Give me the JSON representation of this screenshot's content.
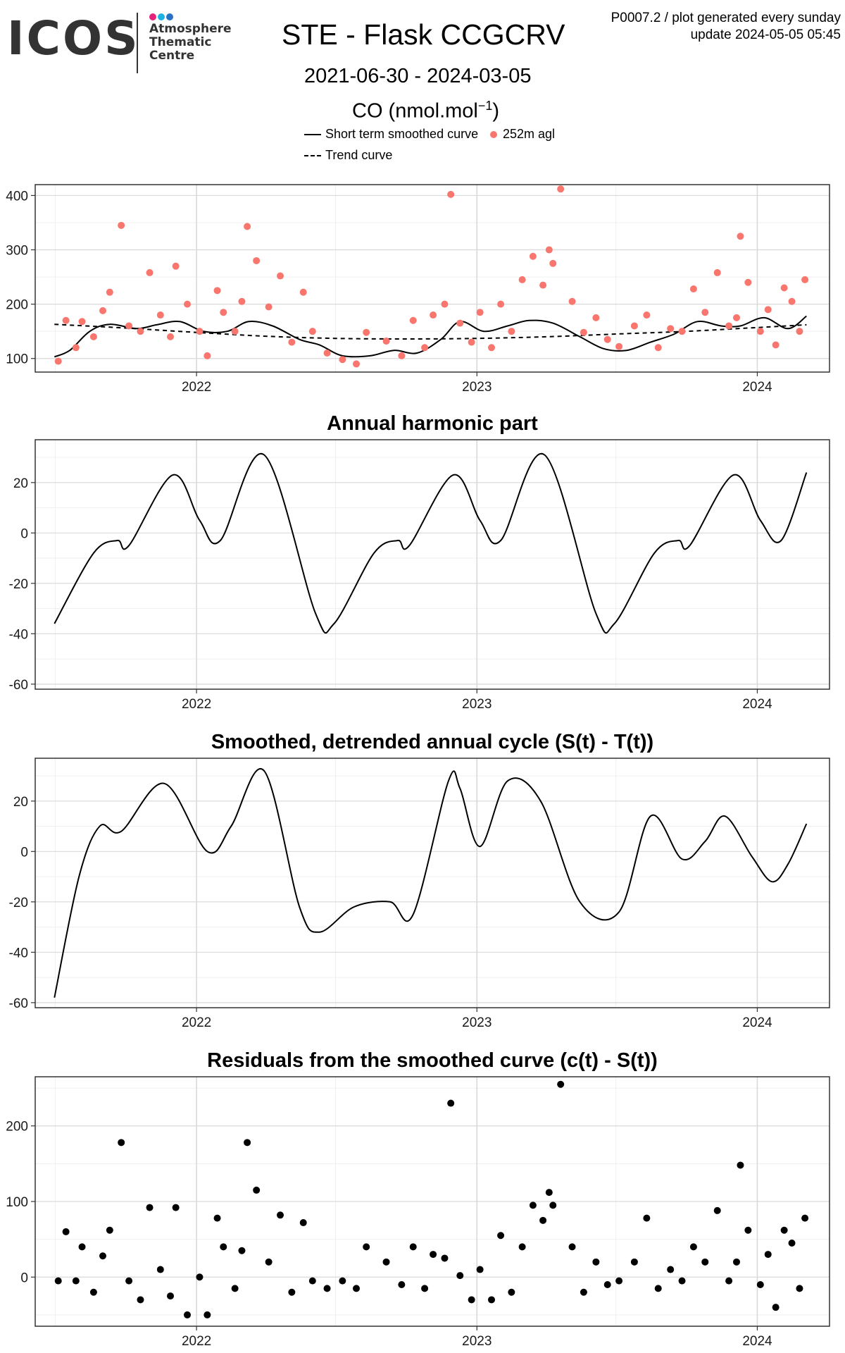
{
  "header": {
    "logo_text": "ICOS",
    "logo_sub": [
      "Atmosphere",
      "Thematic",
      "Centre"
    ],
    "logo_dot_colors": [
      "#e3237b",
      "#1eb1e6",
      "#2572c6"
    ],
    "title": "STE - Flask CCGCRV",
    "date_range": "2021-06-30 - 2024-03-05",
    "unit_main": "CO (nmol.mol",
    "unit_sup": "−1",
    "unit_close": ")",
    "corner_line1": "P0007.2 / plot generated every sunday",
    "corner_line2": "update  2024-05-05 05:45"
  },
  "legend": {
    "smooth_label": "Short term smoothed curve",
    "points_label": "252m agl",
    "trend_label": "Trend curve"
  },
  "colors": {
    "points": "#f8766d",
    "line": "#000000",
    "grid_major": "#d9d9d9",
    "grid_minor": "#efefef",
    "frame": "#333333"
  },
  "chart_data": [
    {
      "type": "scatter",
      "title": "",
      "xlabel": "",
      "ylabel": "",
      "xlim": [
        "2021-06-05",
        "2024-04-04"
      ],
      "ylim": [
        75,
        420
      ],
      "x_ticks": [
        "2022",
        "2023",
        "2024"
      ],
      "y_ticks": [
        "100",
        "200",
        "300",
        "400"
      ],
      "legend_position": "top",
      "grid": true,
      "series": [
        {
          "name": "Short term smoothed curve",
          "kind": "line",
          "x": [
            "2021-06-30",
            "2021-07-20",
            "2021-08-15",
            "2021-09-10",
            "2021-10-15",
            "2021-11-10",
            "2021-12-10",
            "2022-01-10",
            "2022-02-10",
            "2022-03-10",
            "2022-04-10",
            "2022-05-15",
            "2022-06-10",
            "2022-07-10",
            "2022-08-15",
            "2022-09-15",
            "2022-10-15",
            "2022-11-15",
            "2022-12-10",
            "2023-01-10",
            "2023-02-10",
            "2023-03-10",
            "2023-04-10",
            "2023-05-15",
            "2023-06-15",
            "2023-07-15",
            "2023-08-15",
            "2023-09-15",
            "2023-10-15",
            "2023-11-15",
            "2023-12-10",
            "2024-01-10",
            "2024-02-10",
            "2024-03-05"
          ],
          "y": [
            103,
            115,
            150,
            163,
            155,
            162,
            168,
            150,
            150,
            168,
            160,
            135,
            125,
            105,
            105,
            115,
            110,
            135,
            168,
            150,
            160,
            170,
            165,
            140,
            118,
            115,
            130,
            145,
            168,
            160,
            160,
            175,
            155,
            178
          ]
        },
        {
          "name": "Trend curve",
          "kind": "dashed-line",
          "x": [
            "2021-06-30",
            "2021-10-01",
            "2022-01-01",
            "2022-04-01",
            "2022-07-01",
            "2022-10-01",
            "2023-01-01",
            "2023-04-01",
            "2023-07-01",
            "2023-10-01",
            "2024-01-01",
            "2024-03-05"
          ],
          "y": [
            163,
            156,
            148,
            141,
            137,
            136,
            137,
            140,
            145,
            150,
            157,
            162
          ]
        },
        {
          "name": "252m agl",
          "kind": "points",
          "x": [
            "2021-07-05",
            "2021-07-15",
            "2021-07-28",
            "2021-08-05",
            "2021-08-20",
            "2021-09-01",
            "2021-09-10",
            "2021-09-25",
            "2021-10-05",
            "2021-10-20",
            "2021-11-01",
            "2021-11-15",
            "2021-11-28",
            "2021-12-05",
            "2021-12-20",
            "2022-01-05",
            "2022-01-15",
            "2022-01-28",
            "2022-02-05",
            "2022-02-20",
            "2022-03-01",
            "2022-03-08",
            "2022-03-20",
            "2022-04-05",
            "2022-04-20",
            "2022-05-05",
            "2022-05-20",
            "2022-06-01",
            "2022-06-20",
            "2022-07-10",
            "2022-07-28",
            "2022-08-10",
            "2022-09-05",
            "2022-09-25",
            "2022-10-10",
            "2022-10-25",
            "2022-11-05",
            "2022-11-20",
            "2022-11-28",
            "2022-12-10",
            "2022-12-25",
            "2023-01-05",
            "2023-01-20",
            "2023-02-01",
            "2023-02-15",
            "2023-03-01",
            "2023-03-15",
            "2023-03-28",
            "2023-04-05",
            "2023-04-10",
            "2023-04-20",
            "2023-05-05",
            "2023-05-20",
            "2023-06-05",
            "2023-06-20",
            "2023-07-05",
            "2023-07-25",
            "2023-08-10",
            "2023-08-25",
            "2023-09-10",
            "2023-09-25",
            "2023-10-10",
            "2023-10-25",
            "2023-11-10",
            "2023-11-25",
            "2023-12-05",
            "2023-12-10",
            "2023-12-20",
            "2024-01-05",
            "2024-01-15",
            "2024-01-25",
            "2024-02-05",
            "2024-02-15",
            "2024-02-25",
            "2024-03-03"
          ],
          "y": [
            95,
            170,
            120,
            168,
            140,
            188,
            222,
            345,
            160,
            150,
            258,
            180,
            140,
            270,
            200,
            150,
            105,
            225,
            185,
            150,
            205,
            343,
            280,
            195,
            252,
            130,
            222,
            150,
            110,
            98,
            90,
            148,
            132,
            105,
            170,
            120,
            180,
            200,
            402,
            165,
            130,
            185,
            120,
            200,
            150,
            245,
            288,
            235,
            300,
            275,
            412,
            205,
            148,
            175,
            135,
            122,
            160,
            180,
            120,
            155,
            150,
            228,
            185,
            258,
            160,
            175,
            325,
            240,
            150,
            190,
            125,
            230,
            205,
            150,
            245
          ]
        }
      ]
    },
    {
      "type": "line",
      "title": "Annual harmonic part",
      "xlabel": "",
      "ylabel": "",
      "xlim": [
        "2021-06-05",
        "2024-04-04"
      ],
      "ylim": [
        -62,
        37
      ],
      "x_ticks": [
        "2022",
        "2023",
        "2024"
      ],
      "y_ticks": [
        "-60",
        "-40",
        "-20",
        "0",
        "20"
      ],
      "grid": true,
      "series": [
        {
          "name": "",
          "x": [
            "2021-06-30",
            "2021-08-20",
            "2021-09-20",
            "2021-10-05",
            "2021-12-01",
            "2022-01-05",
            "2022-02-01",
            "2022-03-30",
            "2022-06-05",
            "2022-06-29",
            "2022-08-20",
            "2022-09-20",
            "2022-10-05",
            "2022-12-01",
            "2023-01-05",
            "2023-02-01",
            "2023-03-30",
            "2023-06-05",
            "2023-06-29",
            "2023-08-20",
            "2023-09-20",
            "2023-10-05",
            "2023-12-01",
            "2024-01-05",
            "2024-02-01",
            "2024-03-05"
          ],
          "y": [
            -36,
            -8,
            -3,
            -5,
            23,
            5,
            -3,
            31,
            -32,
            -36,
            -8,
            -3,
            -5,
            23,
            5,
            -3,
            31,
            -32,
            -36,
            -8,
            -3,
            -5,
            23,
            5,
            -3,
            24
          ]
        }
      ]
    },
    {
      "type": "line",
      "title": "Smoothed, detrended annual cycle (S(t) - T(t))",
      "xlabel": "",
      "ylabel": "",
      "xlim": [
        "2021-06-05",
        "2024-04-04"
      ],
      "ylim": [
        -62,
        37
      ],
      "x_ticks": [
        "2022",
        "2023",
        "2024"
      ],
      "y_ticks": [
        "-60",
        "-40",
        "-20",
        "0",
        "20"
      ],
      "grid": true,
      "series": [
        {
          "name": "",
          "x": [
            "2021-06-30",
            "2021-08-01",
            "2021-08-28",
            "2021-09-25",
            "2021-11-20",
            "2022-01-15",
            "2022-02-15",
            "2022-03-30",
            "2022-05-15",
            "2022-06-10",
            "2022-07-25",
            "2022-09-10",
            "2022-10-10",
            "2022-11-25",
            "2022-12-10",
            "2023-01-05",
            "2023-02-10",
            "2023-03-25",
            "2023-05-15",
            "2023-07-05",
            "2023-08-15",
            "2023-09-25",
            "2023-10-25",
            "2023-11-20",
            "2023-12-25",
            "2024-01-20",
            "2024-02-10",
            "2024-03-05"
          ],
          "y": [
            -58,
            -10,
            10,
            8,
            27,
            0,
            10,
            32,
            -22,
            -32,
            -22,
            -20,
            -25,
            28,
            25,
            2,
            28,
            20,
            -20,
            -24,
            14,
            -3,
            4,
            14,
            -2,
            -12,
            -5,
            11
          ]
        }
      ]
    },
    {
      "type": "scatter",
      "title": "Residuals from the smoothed curve (c(t) - S(t))",
      "xlabel": "",
      "ylabel": "",
      "xlim": [
        "2021-06-05",
        "2024-04-04"
      ],
      "ylim": [
        -65,
        265
      ],
      "x_ticks": [
        "2022",
        "2023",
        "2024"
      ],
      "y_ticks": [
        "0",
        "100",
        "200"
      ],
      "grid": true,
      "series": [
        {
          "name": "",
          "x": [
            "2021-07-05",
            "2021-07-15",
            "2021-07-28",
            "2021-08-05",
            "2021-08-20",
            "2021-09-01",
            "2021-09-10",
            "2021-09-25",
            "2021-10-05",
            "2021-10-20",
            "2021-11-01",
            "2021-11-15",
            "2021-11-28",
            "2021-12-05",
            "2021-12-20",
            "2022-01-05",
            "2022-01-15",
            "2022-01-28",
            "2022-02-05",
            "2022-02-20",
            "2022-03-01",
            "2022-03-08",
            "2022-03-20",
            "2022-04-05",
            "2022-04-20",
            "2022-05-05",
            "2022-05-20",
            "2022-06-01",
            "2022-06-20",
            "2022-07-10",
            "2022-07-28",
            "2022-08-10",
            "2022-09-05",
            "2022-09-25",
            "2022-10-10",
            "2022-10-25",
            "2022-11-05",
            "2022-11-20",
            "2022-11-28",
            "2022-12-10",
            "2022-12-25",
            "2023-01-05",
            "2023-01-20",
            "2023-02-01",
            "2023-02-15",
            "2023-03-01",
            "2023-03-15",
            "2023-03-28",
            "2023-04-05",
            "2023-04-10",
            "2023-04-20",
            "2023-05-05",
            "2023-05-20",
            "2023-06-05",
            "2023-06-20",
            "2023-07-05",
            "2023-07-25",
            "2023-08-10",
            "2023-08-25",
            "2023-09-10",
            "2023-09-25",
            "2023-10-10",
            "2023-10-25",
            "2023-11-10",
            "2023-11-25",
            "2023-12-05",
            "2023-12-10",
            "2023-12-20",
            "2024-01-05",
            "2024-01-15",
            "2024-01-25",
            "2024-02-05",
            "2024-02-15",
            "2024-02-25",
            "2024-03-03"
          ],
          "y": [
            -5,
            60,
            -5,
            40,
            -20,
            28,
            62,
            178,
            -5,
            -30,
            92,
            10,
            -25,
            92,
            -50,
            0,
            -50,
            78,
            40,
            -15,
            35,
            178,
            115,
            20,
            82,
            -20,
            72,
            -5,
            -15,
            -5,
            -15,
            40,
            20,
            -10,
            40,
            -15,
            30,
            25,
            230,
            2,
            -30,
            10,
            -30,
            55,
            -20,
            40,
            95,
            75,
            112,
            95,
            255,
            40,
            -20,
            20,
            -10,
            -5,
            20,
            78,
            -15,
            10,
            -5,
            40,
            20,
            88,
            -5,
            20,
            148,
            62,
            -10,
            30,
            -40,
            62,
            45,
            -15,
            78
          ]
        }
      ]
    }
  ]
}
